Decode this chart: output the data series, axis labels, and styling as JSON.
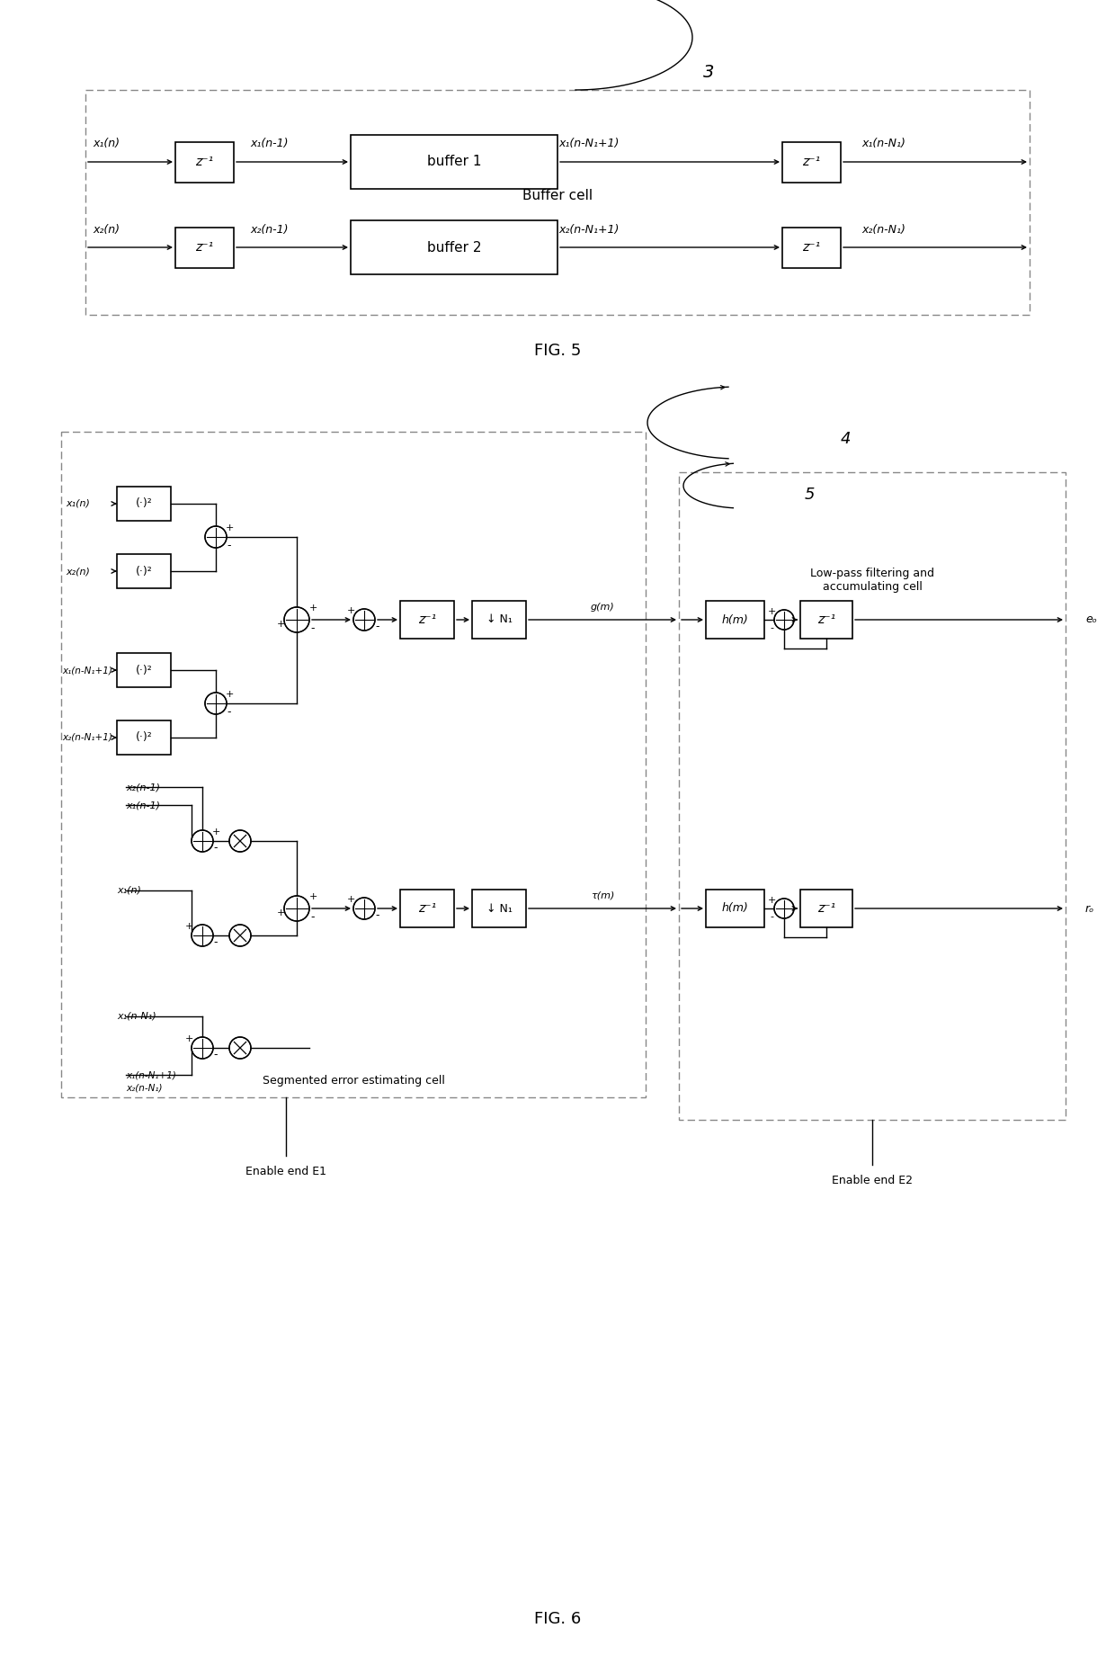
{
  "fig5": {
    "title": "FIG. 5",
    "label": "3",
    "buffer_cell_label": "Buffer cell",
    "row1_labels": [
      "x₁(n)",
      "x₁(n-1)",
      "x₁(n-N₁+1)",
      "x₁(n-N₁)"
    ],
    "row2_labels": [
      "x₂(n)",
      "x₂(n-1)",
      "x₂(n-N₁+1)",
      "x₂(n-N₁)"
    ],
    "buf1": "buffer 1",
    "buf2": "buffer 2",
    "z_inv": "z⁻¹"
  },
  "fig6": {
    "title": "FIG. 6",
    "label4": "4",
    "label5": "5",
    "seg_label": "Segmented error estimating cell",
    "lp_label": "Low-pass filtering and\naccumulating cell",
    "enable_e1": "Enable end E1",
    "enable_e2": "Enable end E2",
    "g_m": "g(m)",
    "tau_m": "τ(m)",
    "h_m": "h(m)",
    "z_inv": "z⁻¹",
    "ds": "↓ N₁",
    "sq": "(·)²",
    "e_out": "eₒ",
    "r_out": "rₒ",
    "labels_upper": [
      "x₁(n)",
      "x₂(n)",
      "x₁(n-N₁+1)",
      "x₂(n-N₁+1)"
    ],
    "labels_lower": [
      "x₂(n-1)",
      "x₁(n-1)",
      "x₁(n)",
      "x₁(n-N₁)",
      "x₁(n-N₁+1)",
      "x₂(n-N₁)"
    ]
  },
  "colors": {
    "box": "#000000",
    "bg": "#ffffff",
    "text": "#000000",
    "dashed": "#888888"
  }
}
